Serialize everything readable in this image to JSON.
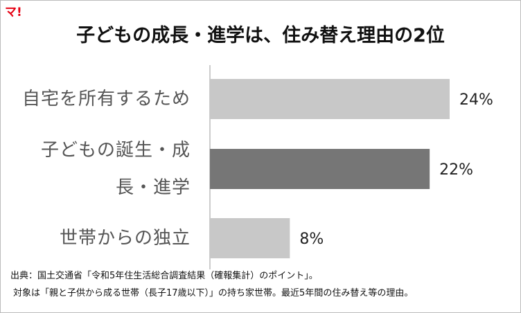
{
  "brand": "マ!",
  "chart_data": {
    "type": "bar",
    "orientation": "horizontal",
    "title": "子どもの成長・進学は、住み替え理由の2位",
    "categories": [
      "自宅を所有するため",
      "子どもの誕生・成\n長・進学",
      "世帯からの独立"
    ],
    "values": [
      24,
      22,
      8
    ],
    "value_labels": [
      "24%",
      "22%",
      "8%"
    ],
    "colors": [
      "#c8c8c8",
      "#767676",
      "#c8c8c8"
    ],
    "notes": [
      "出典：国土交通省「令和5年住生活総合調査結果（確報集計）のポイント」。",
      "対象は「親と子供から成る世帯（長子17歳以下）」の持ち家世帯。最近5年間の住み替え等の理由。"
    ]
  }
}
